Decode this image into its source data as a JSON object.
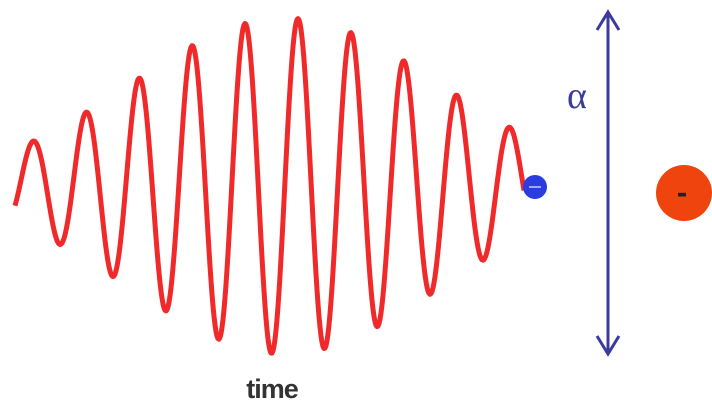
{
  "labels": {
    "alpha": "α",
    "time": "time",
    "charge": "-"
  }
}
